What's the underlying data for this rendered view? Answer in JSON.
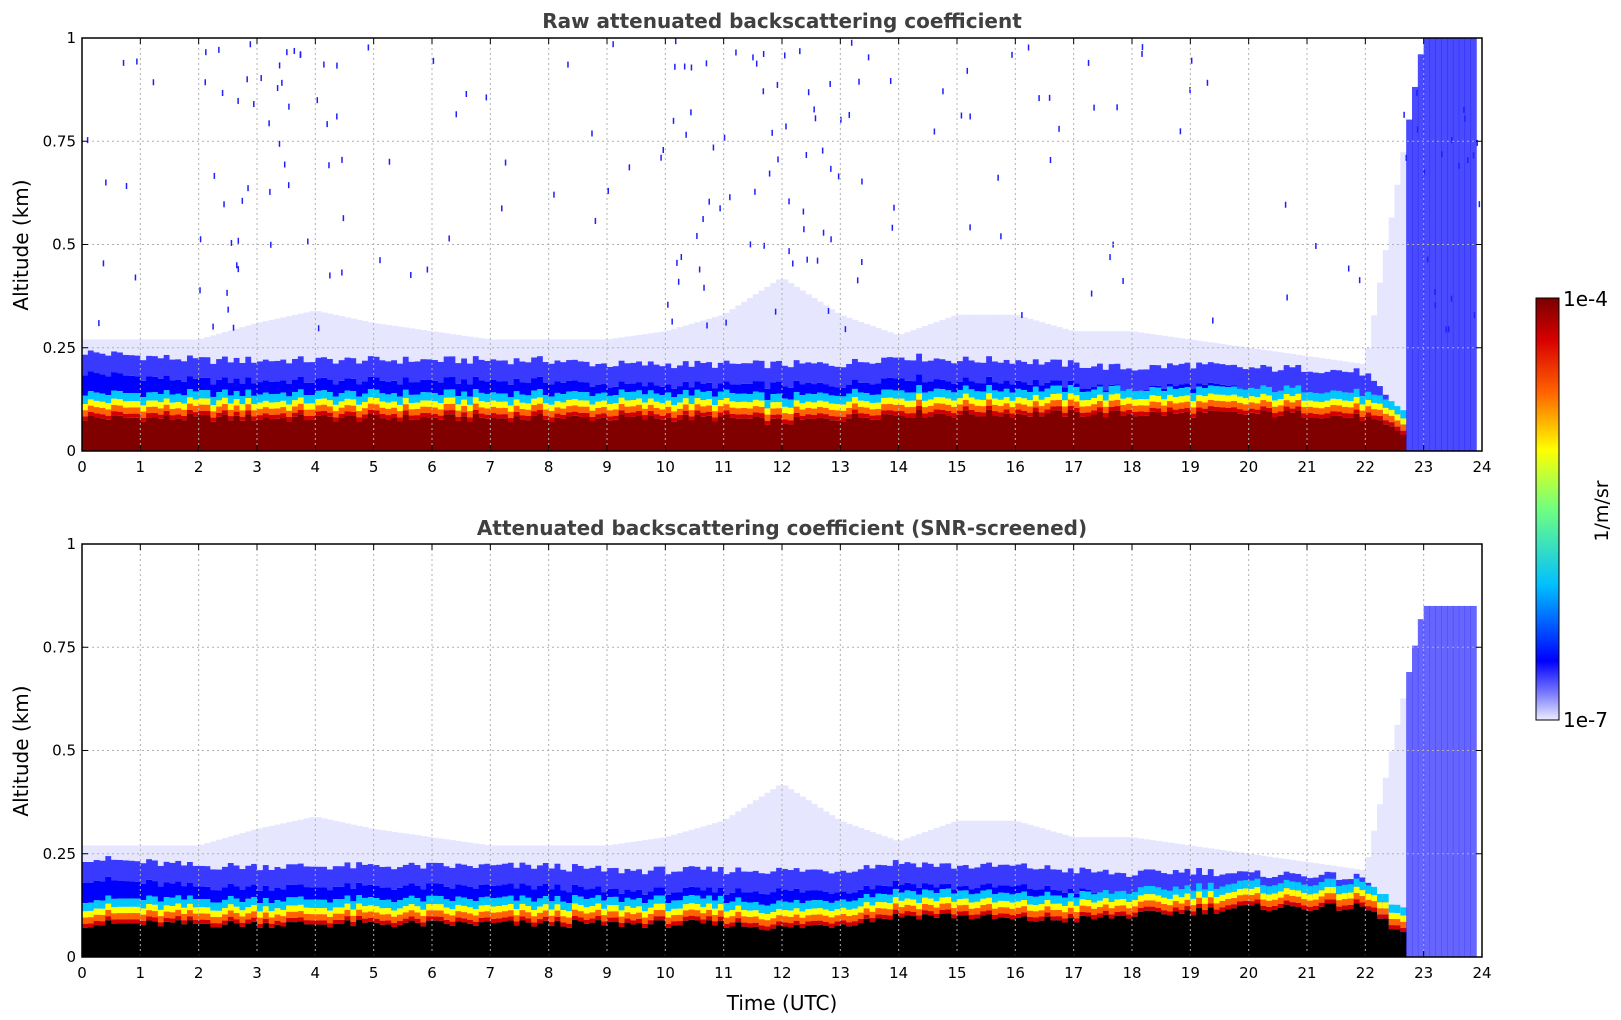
{
  "chart_data": [
    {
      "type": "heatmap",
      "title": "Raw attenuated backscattering coefficient",
      "xlabel": "",
      "ylabel": "Altitude (km)",
      "xlim": [
        0,
        24
      ],
      "ylim": [
        0,
        1
      ],
      "x_ticks": [
        "0",
        "1",
        "2",
        "3",
        "4",
        "5",
        "6",
        "7",
        "8",
        "9",
        "10",
        "11",
        "12",
        "13",
        "14",
        "15",
        "16",
        "17",
        "18",
        "19",
        "20",
        "21",
        "22",
        "23",
        "24"
      ],
      "y_ticks": [
        "0",
        "0.25",
        "0.5",
        "0.75",
        "1"
      ],
      "grid": true,
      "bands": [
        {
          "name": "",
          "values": [
            0.08,
            0.08,
            0.08,
            0.08,
            0.08,
            0.08,
            0.08,
            0.08,
            0.08,
            0.08,
            0.08,
            0.08,
            0.07,
            0.08,
            0.09,
            0.09,
            0.09,
            0.09,
            0.09,
            0.09,
            0.09,
            0.09,
            0.08,
            0.02,
            0.0
          ]
        },
        {
          "name": "",
          "values": [
            0.22,
            0.21,
            0.2,
            0.2,
            0.2,
            0.2,
            0.2,
            0.2,
            0.2,
            0.19,
            0.19,
            0.19,
            0.19,
            0.19,
            0.21,
            0.2,
            0.2,
            0.19,
            0.18,
            0.19,
            0.18,
            0.18,
            0.17,
            0.0,
            0.0
          ]
        }
      ],
      "haze_top": [
        0.27,
        0.27,
        0.27,
        0.31,
        0.34,
        0.31,
        0.29,
        0.27,
        0.27,
        0.27,
        0.29,
        0.33,
        0.42,
        0.33,
        0.28,
        0.33,
        0.33,
        0.29,
        0.29,
        0.27,
        0.25,
        0.23,
        0.21,
        1.0,
        1.0
      ]
    },
    {
      "type": "heatmap",
      "title": "Attenuated backscattering coefficient (SNR-screened)",
      "xlabel": "Time (UTC)",
      "ylabel": "Altitude (km)",
      "xlim": [
        0,
        24
      ],
      "ylim": [
        0,
        1
      ],
      "x_ticks": [
        "0",
        "1",
        "2",
        "3",
        "4",
        "5",
        "6",
        "7",
        "8",
        "9",
        "10",
        "11",
        "12",
        "13",
        "14",
        "15",
        "16",
        "17",
        "18",
        "19",
        "20",
        "21",
        "22",
        "23",
        "24"
      ],
      "y_ticks": [
        "0",
        "0.25",
        "0.5",
        "0.75",
        "1"
      ],
      "grid": true,
      "bands": [
        {
          "name": "",
          "values": [
            0.08,
            0.08,
            0.08,
            0.08,
            0.08,
            0.08,
            0.08,
            0.08,
            0.08,
            0.08,
            0.08,
            0.08,
            0.07,
            0.08,
            0.1,
            0.1,
            0.09,
            0.09,
            0.1,
            0.11,
            0.12,
            0.12,
            0.12,
            0.02,
            0.0
          ]
        },
        {
          "name": "",
          "values": [
            0.22,
            0.21,
            0.2,
            0.2,
            0.2,
            0.2,
            0.2,
            0.2,
            0.2,
            0.19,
            0.19,
            0.19,
            0.19,
            0.19,
            0.21,
            0.2,
            0.2,
            0.19,
            0.18,
            0.19,
            0.18,
            0.18,
            0.17,
            0.0,
            0.0
          ]
        }
      ],
      "haze_top": [
        0.27,
        0.27,
        0.27,
        0.31,
        0.34,
        0.31,
        0.29,
        0.27,
        0.27,
        0.27,
        0.29,
        0.33,
        0.42,
        0.33,
        0.28,
        0.33,
        0.33,
        0.29,
        0.29,
        0.27,
        0.25,
        0.23,
        0.21,
        0.85,
        0.85
      ]
    }
  ],
  "colorbar": {
    "label": "1/m/sr",
    "max_label": "1e-4",
    "min_label": "1e-7",
    "colormap": "jet",
    "colors": [
      "#e6e6ff",
      "#0000ff",
      "#00c8ff",
      "#80ff80",
      "#ffff00",
      "#ff6400",
      "#d20000",
      "#800000"
    ],
    "screened_min_color": "#000000"
  }
}
